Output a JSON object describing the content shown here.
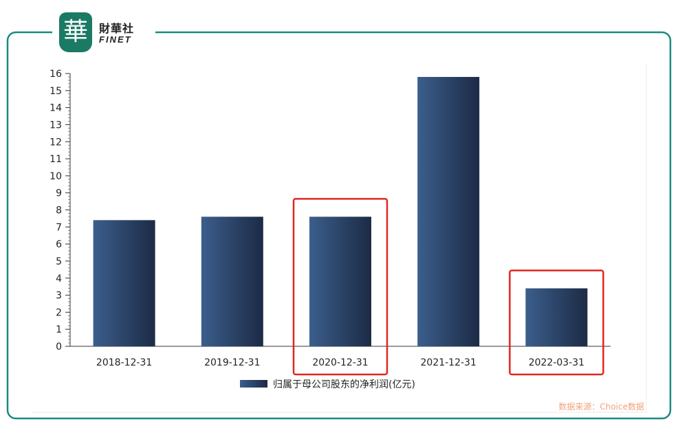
{
  "brand": {
    "seal_char": "華",
    "name_cn": "財華社",
    "name_en": "FINET"
  },
  "source_note": "数据来源：Choice数据",
  "colors": {
    "frame": "#188a80",
    "bar_light": "#3b5e8c",
    "bar_dark": "#1c2b45",
    "highlight": "#e0261e"
  },
  "chart_data": {
    "type": "bar",
    "categories": [
      "2018-12-31",
      "2019-12-31",
      "2020-12-31",
      "2021-12-31",
      "2022-03-31"
    ],
    "series": [
      {
        "name": "归属于母公司股东的净利润(亿元)",
        "values": [
          7.4,
          7.6,
          7.6,
          15.8,
          3.4
        ]
      }
    ],
    "ylim": [
      0,
      16
    ],
    "yticks": [
      0,
      1,
      2,
      3,
      4,
      5,
      6,
      7,
      8,
      9,
      10,
      11,
      12,
      13,
      14,
      15,
      16
    ],
    "highlighted_categories": [
      "2020-12-31",
      "2022-03-31"
    ],
    "legend_position": "bottom",
    "grid": false
  }
}
